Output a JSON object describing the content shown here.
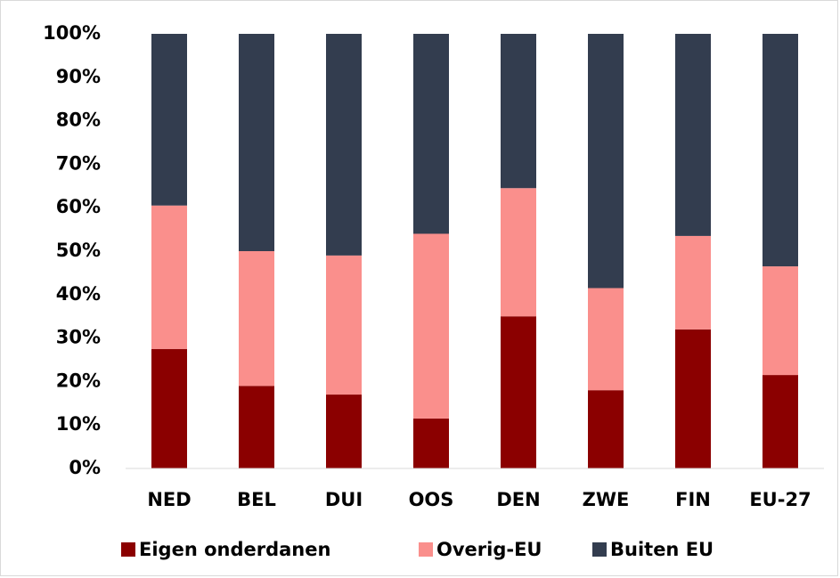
{
  "chart_data": {
    "type": "stacked-bar",
    "categories": [
      "NED",
      "BEL",
      "DUI",
      "OOS",
      "DEN",
      "ZWE",
      "FIN",
      "EU-27"
    ],
    "series": [
      {
        "name": "Eigen onderdanen",
        "color": "#8b0000",
        "values": [
          27.5,
          19,
          17,
          11.5,
          35,
          18,
          32,
          21.5
        ]
      },
      {
        "name": "Overig-EU",
        "color": "#fa8f8c",
        "values": [
          33,
          31,
          32,
          42.5,
          29.5,
          23.5,
          21.5,
          25
        ]
      },
      {
        "name": "Buiten EU",
        "color": "#333d4f",
        "values": [
          39.5,
          50,
          51,
          46,
          35.5,
          58.5,
          46.5,
          53.5
        ]
      }
    ],
    "ylim": [
      0,
      100
    ],
    "yticks": [
      {
        "value": 0,
        "label": "0%"
      },
      {
        "value": 10,
        "label": "10%"
      },
      {
        "value": 20,
        "label": "20%"
      },
      {
        "value": 30,
        "label": "30%"
      },
      {
        "value": 40,
        "label": "40%"
      },
      {
        "value": 50,
        "label": "50%"
      },
      {
        "value": 60,
        "label": "60%"
      },
      {
        "value": 70,
        "label": "70%"
      },
      {
        "value": 80,
        "label": "80%"
      },
      {
        "value": 90,
        "label": "90%"
      },
      {
        "value": 100,
        "label": "100%"
      }
    ],
    "grid": false,
    "legend": "bottom"
  }
}
